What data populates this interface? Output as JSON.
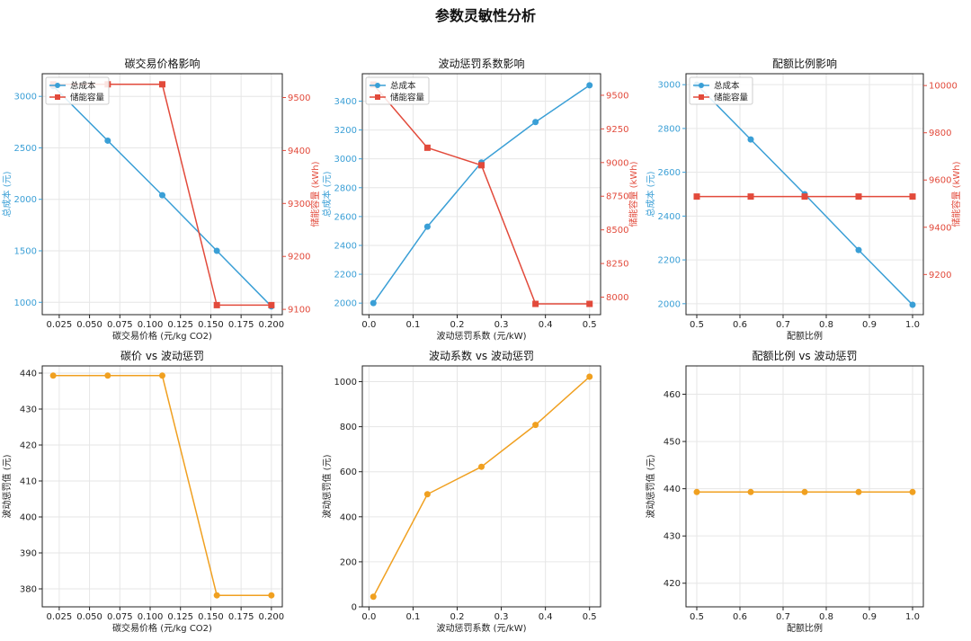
{
  "figure": {
    "title": "参数灵敏性分析"
  },
  "colors": {
    "cost": "#3a9fd6",
    "storage": "#e24a3b",
    "penalty": "#f0a020",
    "grid": "#e6e6e6",
    "axis": "#222222"
  },
  "chart_data": [
    {
      "type": "line",
      "title": "碳交易价格影响",
      "xlabel": "碳交易价格 (元/kg CO2)",
      "ylabel": "总成本 (元)",
      "y2label": "储能容量 (kWh)",
      "x": [
        0.02,
        0.065,
        0.11,
        0.155,
        0.2
      ],
      "xlim": [
        0.011,
        0.209
      ],
      "xticks": [
        "0.025",
        "0.050",
        "0.075",
        "0.100",
        "0.125",
        "0.150",
        "0.175",
        "0.200"
      ],
      "ylim": [
        880,
        3220
      ],
      "yticks": [
        "1000",
        "1500",
        "2000",
        "2500",
        "3000"
      ],
      "y2lim": [
        9090,
        9545
      ],
      "y2ticks": [
        "9100",
        "9200",
        "9300",
        "9400",
        "9500"
      ],
      "grid": true,
      "legend": "upper-left",
      "series": [
        {
          "name": "总成本",
          "axis": "left",
          "marker": "circle",
          "values": [
            3100,
            2570,
            2040,
            1500,
            960
          ]
        },
        {
          "name": "储能容量",
          "axis": "right",
          "marker": "square",
          "values": [
            9525,
            9525,
            9525,
            9108,
            9108
          ]
        }
      ]
    },
    {
      "type": "line",
      "title": "波动惩罚系数影响",
      "xlabel": "波动惩罚系数 (元/kW)",
      "ylabel": "总成本 (元)",
      "y2label": "储能容量 (kWh)",
      "x": [
        0.01,
        0.1325,
        0.255,
        0.3775,
        0.5
      ],
      "xlim": [
        -0.015,
        0.525
      ],
      "xticks": [
        "0.0",
        "0.1",
        "0.2",
        "0.3",
        "0.4",
        "0.5"
      ],
      "ylim": [
        1920,
        3590
      ],
      "yticks": [
        "2000",
        "2200",
        "2400",
        "2600",
        "2800",
        "3000",
        "3200",
        "3400"
      ],
      "y2lim": [
        7870,
        9660
      ],
      "y2ticks": [
        "8000",
        "8250",
        "8500",
        "8750",
        "9000",
        "9250",
        "9500"
      ],
      "grid": true,
      "legend": "upper-left",
      "series": [
        {
          "name": "总成本",
          "axis": "left",
          "marker": "circle",
          "values": [
            2000,
            2530,
            2975,
            3255,
            3510
          ]
        },
        {
          "name": "储能容量",
          "axis": "right",
          "marker": "square",
          "values": [
            9580,
            9110,
            8980,
            7950,
            7950
          ]
        }
      ]
    },
    {
      "type": "line",
      "title": "配额比例影响",
      "xlabel": "配额比例",
      "ylabel": "总成本 (元)",
      "y2label": "储能容量 (kWh)",
      "x": [
        0.5,
        0.625,
        0.75,
        0.875,
        1.0
      ],
      "xlim": [
        0.475,
        1.025
      ],
      "xticks": [
        "0.5",
        "0.6",
        "0.7",
        "0.8",
        "0.9",
        "1.0"
      ],
      "ylim": [
        1950,
        3050
      ],
      "yticks": [
        "2000",
        "2200",
        "2400",
        "2600",
        "2800",
        "3000"
      ],
      "y2lim": [
        9030,
        10050
      ],
      "y2ticks": [
        "9200",
        "9400",
        "9600",
        "9800",
        "10000"
      ],
      "grid": true,
      "legend": "upper-left",
      "series": [
        {
          "name": "总成本",
          "axis": "left",
          "marker": "circle",
          "values": [
            3000,
            2750,
            2500,
            2245,
            1995
          ]
        },
        {
          "name": "储能容量",
          "axis": "right",
          "marker": "square",
          "values": [
            9530,
            9530,
            9530,
            9530,
            9530
          ]
        }
      ]
    },
    {
      "type": "line",
      "title": "碳价 vs 波动惩罚",
      "xlabel": "碳交易价格 (元/kg CO2)",
      "ylabel": "波动惩罚值 (元)",
      "x": [
        0.02,
        0.065,
        0.11,
        0.155,
        0.2
      ],
      "xlim": [
        0.011,
        0.209
      ],
      "xticks": [
        "0.025",
        "0.050",
        "0.075",
        "0.100",
        "0.125",
        "0.150",
        "0.175",
        "0.200"
      ],
      "ylim": [
        375,
        442
      ],
      "yticks": [
        "380",
        "390",
        "400",
        "410",
        "420",
        "430",
        "440"
      ],
      "grid": true,
      "series": [
        {
          "name": "",
          "axis": "left",
          "marker": "circle",
          "values": [
            439.3,
            439.3,
            439.3,
            378.2,
            378.2
          ]
        }
      ]
    },
    {
      "type": "line",
      "title": "波动系数 vs 波动惩罚",
      "xlabel": "波动惩罚系数 (元/kW)",
      "ylabel": "波动惩罚值 (元)",
      "x": [
        0.01,
        0.1325,
        0.255,
        0.3775,
        0.5
      ],
      "xlim": [
        -0.015,
        0.525
      ],
      "xticks": [
        "0.0",
        "0.1",
        "0.2",
        "0.3",
        "0.4",
        "0.5"
      ],
      "ylim": [
        0,
        1070
      ],
      "yticks": [
        "0",
        "200",
        "400",
        "600",
        "800",
        "1000"
      ],
      "grid": true,
      "series": [
        {
          "name": "",
          "axis": "left",
          "marker": "circle",
          "values": [
            45,
            500,
            622,
            808,
            1022
          ]
        }
      ]
    },
    {
      "type": "line",
      "title": "配额比例 vs 波动惩罚",
      "xlabel": "配额比例",
      "ylabel": "波动惩罚值 (元)",
      "x": [
        0.5,
        0.625,
        0.75,
        0.875,
        1.0
      ],
      "xlim": [
        0.475,
        1.025
      ],
      "xticks": [
        "0.5",
        "0.6",
        "0.7",
        "0.8",
        "0.9",
        "1.0"
      ],
      "ylim": [
        415,
        466
      ],
      "yticks": [
        "420",
        "430",
        "440",
        "450",
        "460"
      ],
      "grid": true,
      "series": [
        {
          "name": "",
          "axis": "left",
          "marker": "circle",
          "values": [
            439.3,
            439.3,
            439.3,
            439.3,
            439.3
          ]
        }
      ]
    }
  ]
}
